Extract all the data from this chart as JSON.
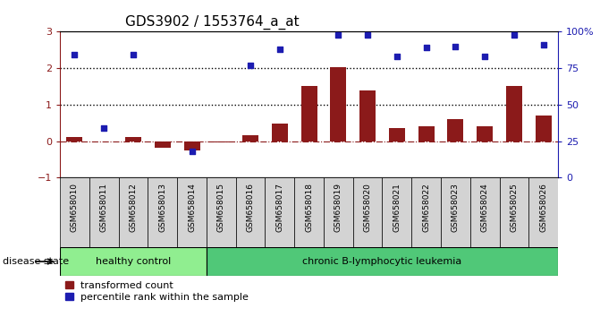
{
  "title": "GDS3902 / 1553764_a_at",
  "samples": [
    "GSM658010",
    "GSM658011",
    "GSM658012",
    "GSM658013",
    "GSM658014",
    "GSM658015",
    "GSM658016",
    "GSM658017",
    "GSM658018",
    "GSM658019",
    "GSM658020",
    "GSM658021",
    "GSM658022",
    "GSM658023",
    "GSM658024",
    "GSM658025",
    "GSM658026"
  ],
  "transformed_count": [
    0.12,
    -0.02,
    0.1,
    -0.18,
    -0.25,
    -0.03,
    0.15,
    0.48,
    1.5,
    2.02,
    1.38,
    0.35,
    0.4,
    0.6,
    0.4,
    1.5,
    0.7
  ],
  "percentile_rank_pct": [
    84,
    34,
    84,
    null,
    18,
    null,
    77,
    88,
    null,
    98,
    98,
    83,
    89,
    90,
    83,
    98,
    91
  ],
  "bar_color": "#8B1A1A",
  "dot_color": "#1C1CB0",
  "healthy_control_count": 5,
  "group_label_hc": "healthy control",
  "group_label_cbl": "chronic B-lymphocytic leukemia",
  "group_color_hc": "#90EE90",
  "group_color_cbl": "#50C878",
  "ylim_left": [
    -1,
    3
  ],
  "yticks_left": [
    -1,
    0,
    1,
    2,
    3
  ],
  "ylim_right": [
    0,
    100
  ],
  "right_ticks": [
    0,
    25,
    50,
    75,
    100
  ],
  "right_tick_labels": [
    "0",
    "25",
    "50",
    "75",
    "100%"
  ],
  "dotted_lines": [
    1,
    2
  ],
  "zero_line_color": "#8B1A1A",
  "legend_labels": [
    "transformed count",
    "percentile rank within the sample"
  ],
  "disease_state_label": "disease state",
  "title_fontsize": 11,
  "tick_fontsize": 8,
  "label_fontsize": 8
}
